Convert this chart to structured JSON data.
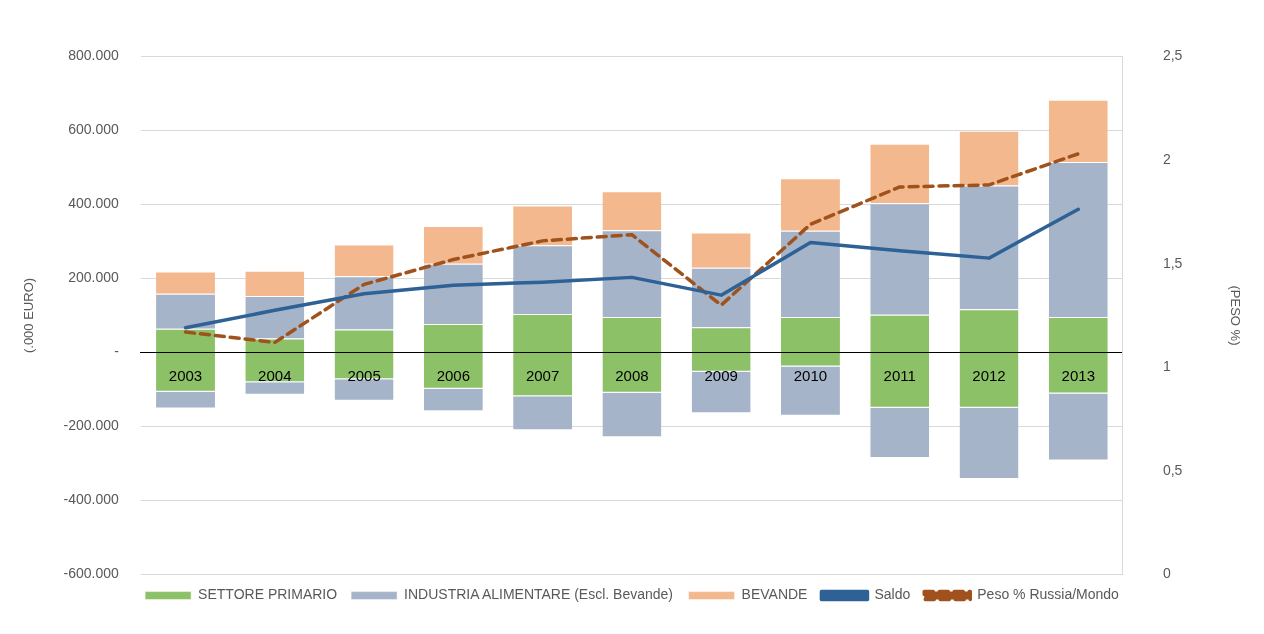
{
  "chart_data": {
    "type": "bar",
    "stacked": true,
    "xlabel": null,
    "ylabel": "(.000 EURO)",
    "y2label": "(PESO %)",
    "categories": [
      "2003",
      "2004",
      "2005",
      "2006",
      "2007",
      "2008",
      "2009",
      "2010",
      "2011",
      "2012",
      "2013"
    ],
    "series": [
      {
        "name": "SETTORE PRIMARIO",
        "color": "#8cc168",
        "values": [
          64000,
          38000,
          62000,
          77000,
          104000,
          96000,
          68000,
          96000,
          102000,
          117000,
          96000
        ]
      },
      {
        "name": "INDUSTRIA ALIMENTARE (Escl. Bevande)",
        "color": "#a5b4c8",
        "values": [
          95000,
          115000,
          144000,
          163000,
          186000,
          234000,
          161000,
          233000,
          301000,
          334000,
          419000
        ]
      },
      {
        "name": "BEVANDE",
        "color": "#f4b88e",
        "values": [
          60000,
          68000,
          86000,
          102000,
          107000,
          106000,
          95000,
          142000,
          161000,
          148000,
          168000
        ]
      },
      {
        "color": "#8cc168",
        "values": [
          -106000,
          -80000,
          -72000,
          -98000,
          -118000,
          -109000,
          -52000,
          -38000,
          -149000,
          -149000,
          -111000
        ]
      },
      {
        "color": "#a5b4c8",
        "values": [
          -45000,
          -34000,
          -58000,
          -61000,
          -92000,
          -120000,
          -112000,
          -133000,
          -136000,
          -193000,
          -181000
        ]
      },
      {
        "name": "Saldo",
        "type": "line",
        "color": "#2e6195",
        "line_style": "solid",
        "values": [
          67000,
          114000,
          159000,
          182000,
          190000,
          203000,
          155000,
          297000,
          275000,
          255000,
          387000
        ]
      },
      {
        "name": "Peso % Russia/Mondo",
        "type": "line",
        "axis": "y2",
        "color": "#a0521c",
        "line_style": "dashed",
        "values": [
          1.17,
          1.12,
          1.4,
          1.52,
          1.61,
          1.64,
          1.3,
          1.69,
          1.87,
          1.88,
          2.03
        ]
      }
    ],
    "ylim": [
      -600000,
      800000
    ],
    "yticks": [
      {
        "value": -600000,
        "label": "-600.000"
      },
      {
        "value": -400000,
        "label": "-400.000"
      },
      {
        "value": -200000,
        "label": "-200.000"
      },
      {
        "value": 0,
        "label": "-"
      },
      {
        "value": 200000,
        "label": "200.000"
      },
      {
        "value": 400000,
        "label": "400.000"
      },
      {
        "value": 600000,
        "label": "600.000"
      },
      {
        "value": 800000,
        "label": "800.000"
      }
    ],
    "y2lim": [
      0,
      2.5
    ],
    "y2ticks": [
      0,
      {
        "value": 0.5,
        "label": "0,5"
      },
      1,
      {
        "value": 1.5,
        "label": "1,5"
      },
      2,
      {
        "value": 2.5,
        "label": "2,5"
      }
    ],
    "grid": "y",
    "legend": "bottom",
    "marker": "none"
  }
}
